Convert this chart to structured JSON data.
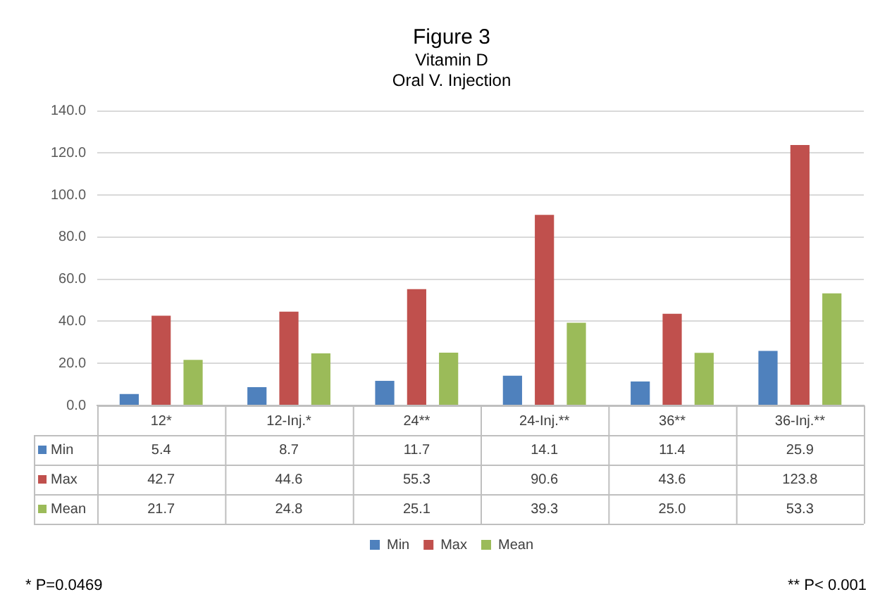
{
  "chart_data": {
    "type": "bar",
    "title": "Figure 3",
    "subtitle": "Vitamin D\nOral V. Injection",
    "categories": [
      "12*",
      "12-Inj.*",
      "24**",
      "24-Inj.**",
      "36**",
      "36-Inj.**"
    ],
    "series": [
      {
        "name": "Min",
        "color": "#4f81bd",
        "values": [
          5.4,
          8.7,
          11.7,
          14.1,
          11.4,
          25.9
        ],
        "value_labels": [
          "5.4",
          "8.7",
          "11.7",
          "14.1",
          "11.4",
          "25.9"
        ]
      },
      {
        "name": "Max",
        "color": "#c0504d",
        "values": [
          42.7,
          44.6,
          55.3,
          90.6,
          43.6,
          123.8
        ],
        "value_labels": [
          "42.7",
          "44.6",
          "55.3",
          "90.6",
          "43.6",
          "123.8"
        ]
      },
      {
        "name": "Mean",
        "color": "#9bbb59",
        "values": [
          21.7,
          24.8,
          25.1,
          39.3,
          25.0,
          53.3
        ],
        "value_labels": [
          "21.7",
          "24.8",
          "25.1",
          "39.3",
          "25.0",
          "53.3"
        ]
      }
    ],
    "ylim": [
      0,
      140
    ],
    "yticks": [
      {
        "value": 0,
        "label": "0.0"
      },
      {
        "value": 20,
        "label": "20.0"
      },
      {
        "value": 40,
        "label": "40.0"
      },
      {
        "value": 60,
        "label": "60.0"
      },
      {
        "value": 80,
        "label": "80.0"
      },
      {
        "value": 100,
        "label": "100.0"
      },
      {
        "value": 120,
        "label": "120.0"
      },
      {
        "value": 140,
        "label": "140.0"
      }
    ],
    "grid": "y",
    "legend": "bottom",
    "annotations": [
      "* P=0.0469",
      "** P< 0.001"
    ]
  }
}
